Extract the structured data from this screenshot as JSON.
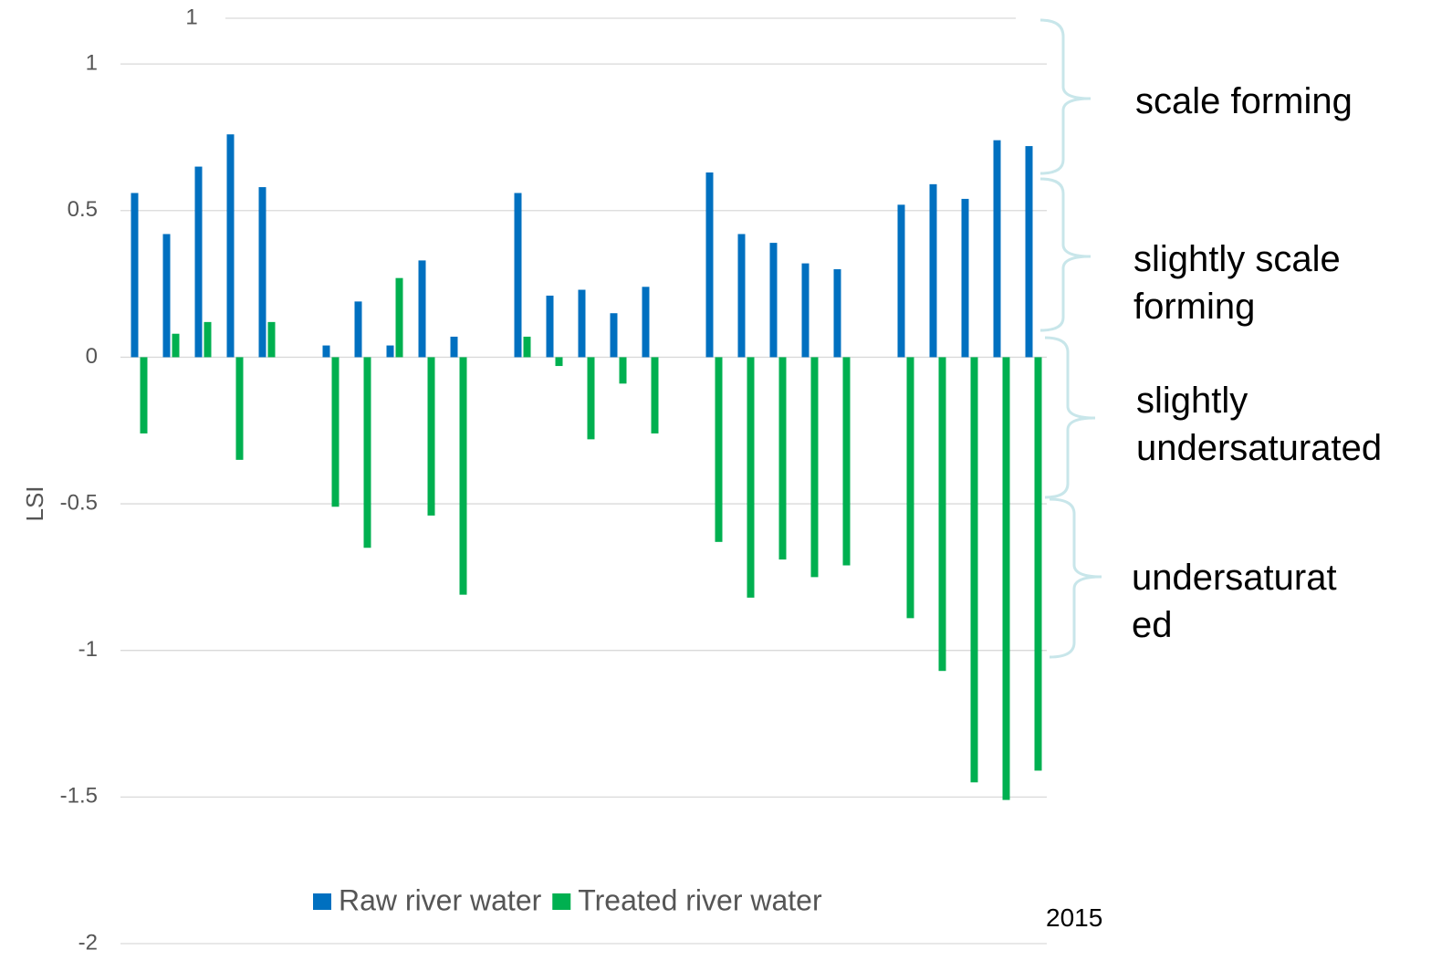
{
  "chart_data": {
    "type": "bar",
    "y_axis_label": "LSI",
    "categories": [
      null,
      null,
      null,
      null,
      null,
      null,
      null,
      null,
      null,
      null,
      null,
      null,
      null,
      null,
      null,
      null,
      null,
      null,
      null,
      null,
      null,
      null,
      null,
      null,
      null,
      null,
      null,
      null,
      null
    ],
    "series": [
      {
        "name": "Raw river water",
        "color": "#0070c0",
        "values": [
          0.56,
          0.42,
          0.65,
          0.76,
          0.58,
          null,
          0.04,
          0.19,
          0.04,
          0.33,
          0.07,
          null,
          0.56,
          0.21,
          0.23,
          0.15,
          0.24,
          null,
          0.63,
          0.42,
          0.39,
          0.32,
          0.3,
          null,
          0.52,
          0.59,
          0.54,
          0.74,
          0.72
        ]
      },
      {
        "name": "Treated river water",
        "color": "#00b050",
        "values": [
          -0.26,
          0.08,
          0.12,
          -0.35,
          0.12,
          null,
          -0.51,
          -0.65,
          0.27,
          -0.54,
          -0.81,
          null,
          0.07,
          -0.03,
          -0.28,
          -0.09,
          -0.26,
          null,
          -0.63,
          -0.82,
          -0.69,
          -0.75,
          -0.71,
          null,
          -0.89,
          -1.07,
          -1.45,
          -1.51,
          -1.41
        ]
      }
    ],
    "ylim": [
      -2,
      1.156
    ],
    "yticks": [
      -2,
      -1.5,
      -1,
      -0.5,
      0,
      0.5,
      1
    ],
    "grid": true,
    "legend": "bottom",
    "annotations": {
      "stray_top_label": "1",
      "year": "2015",
      "scale_forming": [
        "scale forming"
      ],
      "slightly_scale_forming": [
        "slightly scale",
        "forming"
      ],
      "slightly_undersaturated": [
        "slightly",
        "undersaturated"
      ],
      "undersaturated": [
        "undersaturat",
        "ed"
      ]
    }
  }
}
